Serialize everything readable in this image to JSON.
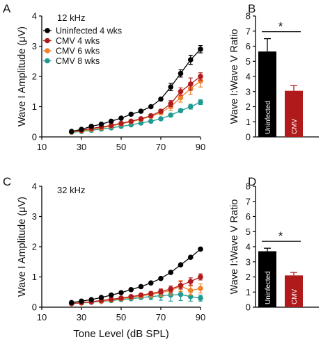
{
  "chart_data": [
    {
      "panel": "A",
      "type": "line",
      "annotation": "12 kHz",
      "ylabel": "Wave I Amplitude (μV)",
      "xlabel": "",
      "xlim": [
        10,
        90
      ],
      "ylim": [
        0,
        4
      ],
      "xticks": [
        "10",
        "30",
        "50",
        "70",
        "90"
      ],
      "yticks": [
        "0",
        "1",
        "2",
        "3",
        "4"
      ],
      "legend_position": "top-left",
      "series": [
        {
          "name": "Uninfected 4 wks",
          "color": "#000000",
          "x": [
            25,
            30,
            35,
            40,
            45,
            50,
            55,
            60,
            65,
            70,
            75,
            80,
            85,
            90
          ],
          "y": [
            0.18,
            0.25,
            0.35,
            0.42,
            0.52,
            0.62,
            0.75,
            0.85,
            1.0,
            1.25,
            1.65,
            2.1,
            2.55,
            2.9
          ],
          "err": [
            0,
            0,
            0,
            0,
            0,
            0,
            0,
            0,
            0,
            0.05,
            0.12,
            0.12,
            0.15,
            0.12
          ]
        },
        {
          "name": "CMV 4 wks",
          "color": "#b01a1a",
          "x": [
            25,
            30,
            35,
            40,
            45,
            50,
            55,
            60,
            65,
            70,
            75,
            80,
            85,
            90
          ],
          "y": [
            0.18,
            0.22,
            0.28,
            0.33,
            0.38,
            0.45,
            0.52,
            0.6,
            0.7,
            0.85,
            1.1,
            1.5,
            1.75,
            2.0
          ],
          "err": [
            0,
            0,
            0,
            0,
            0,
            0,
            0,
            0,
            0.05,
            0.06,
            0.1,
            0.12,
            0.2,
            0.12
          ]
        },
        {
          "name": "CMV 6 wks",
          "color": "#f0812a",
          "x": [
            25,
            30,
            35,
            40,
            45,
            50,
            55,
            60,
            65,
            70,
            75,
            80,
            85,
            90
          ],
          "y": [
            0.16,
            0.2,
            0.25,
            0.3,
            0.36,
            0.43,
            0.5,
            0.58,
            0.68,
            0.8,
            1.0,
            1.3,
            1.6,
            1.85
          ],
          "err": [
            0,
            0,
            0,
            0,
            0,
            0,
            0,
            0,
            0.05,
            0.06,
            0.12,
            0.15,
            0.2,
            0.2
          ]
        },
        {
          "name": "CMV 8 wks",
          "color": "#1f9a93",
          "x": [
            25,
            30,
            35,
            40,
            45,
            50,
            55,
            60,
            65,
            70,
            75,
            80,
            85,
            90
          ],
          "y": [
            0.15,
            0.18,
            0.22,
            0.26,
            0.3,
            0.35,
            0.4,
            0.46,
            0.52,
            0.6,
            0.72,
            0.87,
            1.0,
            1.15
          ],
          "err": [
            0,
            0,
            0,
            0,
            0,
            0,
            0,
            0,
            0,
            0,
            0.05,
            0.06,
            0.08,
            0.08
          ]
        }
      ]
    },
    {
      "panel": "B",
      "type": "bar",
      "ylabel": "Wave I:Wave V Ratio",
      "ylim": [
        0,
        8
      ],
      "yticks": [
        "0",
        "1",
        "2",
        "3",
        "4",
        "5",
        "6",
        "7",
        "8"
      ],
      "categories": [
        "Uninfected",
        "CMV"
      ],
      "values": [
        5.65,
        3.05
      ],
      "errors": [
        0.85,
        0.35
      ],
      "colors": [
        "#000000",
        "#b01a1a"
      ],
      "significance": "*"
    },
    {
      "panel": "C",
      "type": "line",
      "annotation": "32 kHz",
      "ylabel": "Wave I Amplitude (μV)",
      "xlabel": "Tone Level (dB SPL)",
      "xlim": [
        10,
        90
      ],
      "ylim": [
        0,
        4
      ],
      "xticks": [
        "10",
        "30",
        "50",
        "70",
        "90"
      ],
      "yticks": [
        "0",
        "1",
        "2",
        "3",
        "4"
      ],
      "series": [
        {
          "name": "Uninfected 4 wks",
          "color": "#000000",
          "x": [
            25,
            30,
            35,
            40,
            45,
            50,
            55,
            60,
            65,
            70,
            75,
            80,
            85,
            90
          ],
          "y": [
            0.15,
            0.2,
            0.25,
            0.32,
            0.4,
            0.48,
            0.58,
            0.68,
            0.8,
            0.95,
            1.15,
            1.4,
            1.65,
            1.92
          ],
          "err": [
            0,
            0,
            0,
            0,
            0,
            0,
            0,
            0,
            0,
            0,
            0,
            0,
            0,
            0
          ]
        },
        {
          "name": "CMV 4 wks",
          "color": "#b01a1a",
          "x": [
            25,
            30,
            35,
            40,
            45,
            50,
            55,
            60,
            65,
            70,
            75,
            80,
            85,
            90
          ],
          "y": [
            0.12,
            0.15,
            0.18,
            0.22,
            0.26,
            0.3,
            0.35,
            0.4,
            0.45,
            0.52,
            0.6,
            0.72,
            0.85,
            1.0
          ],
          "err": [
            0,
            0,
            0,
            0,
            0,
            0,
            0,
            0,
            0,
            0.08,
            0.1,
            0.12,
            0.12,
            0.1
          ]
        },
        {
          "name": "CMV 6 wks",
          "color": "#f0812a",
          "x": [
            25,
            30,
            35,
            40,
            45,
            50,
            55,
            60,
            65,
            70,
            75,
            80,
            85,
            90
          ],
          "y": [
            0.12,
            0.14,
            0.17,
            0.2,
            0.24,
            0.28,
            0.32,
            0.37,
            0.42,
            0.48,
            0.55,
            0.7,
            0.55,
            0.62
          ],
          "err": [
            0,
            0,
            0,
            0,
            0,
            0,
            0,
            0,
            0.1,
            0.12,
            0.15,
            0.18,
            0.15,
            0.15
          ]
        },
        {
          "name": "CMV 8 wks",
          "color": "#1f9a93",
          "x": [
            25,
            30,
            35,
            40,
            45,
            50,
            55,
            60,
            65,
            70,
            75,
            80,
            85,
            90
          ],
          "y": [
            0.12,
            0.14,
            0.16,
            0.19,
            0.22,
            0.25,
            0.28,
            0.32,
            0.35,
            0.38,
            0.4,
            0.42,
            0.35,
            0.3
          ],
          "err": [
            0,
            0,
            0,
            0,
            0,
            0,
            0,
            0,
            0.1,
            0.15,
            0.2,
            0.2,
            0.15,
            0.1
          ]
        }
      ]
    },
    {
      "panel": "D",
      "type": "bar",
      "ylabel": "Wave I:Wave V Ratio",
      "ylim": [
        0,
        8
      ],
      "yticks": [
        "0",
        "1",
        "2",
        "3",
        "4",
        "5",
        "6",
        "7",
        "8"
      ],
      "categories": [
        "Uninfected",
        "CMV"
      ],
      "values": [
        3.7,
        2.1
      ],
      "errors": [
        0.2,
        0.2
      ],
      "colors": [
        "#000000",
        "#b01a1a"
      ],
      "significance": "*"
    }
  ]
}
